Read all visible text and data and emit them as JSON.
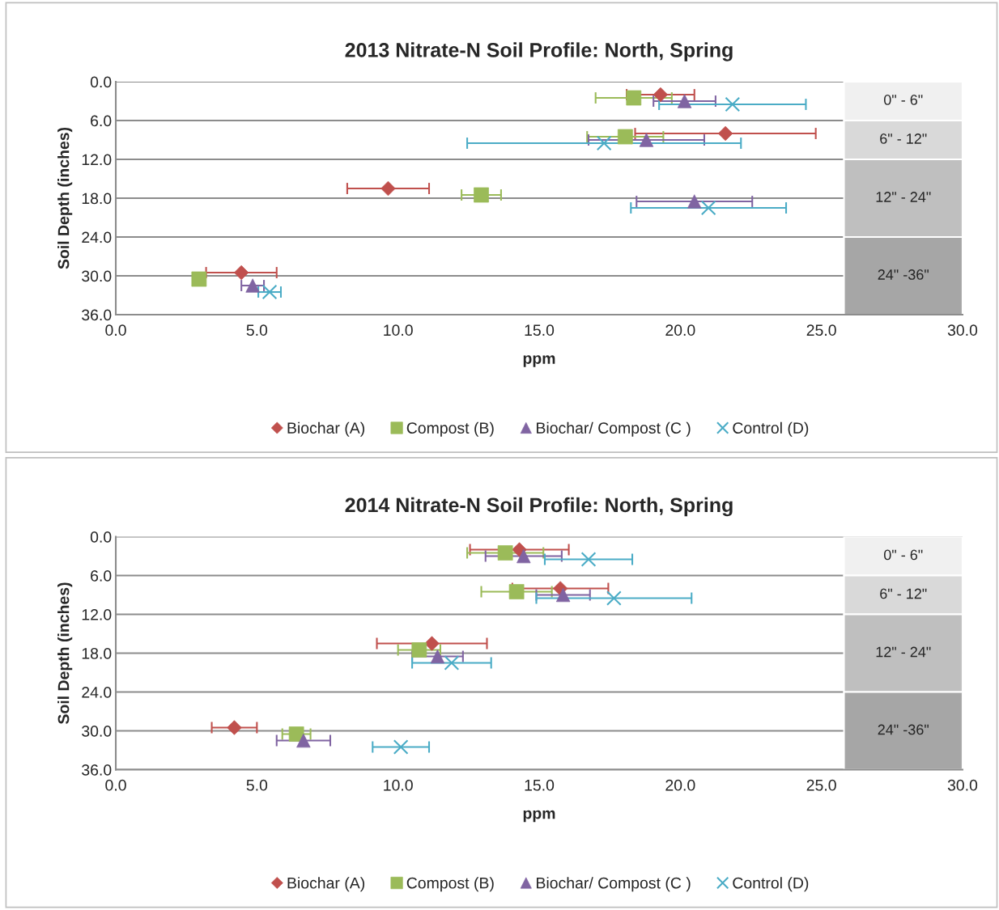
{
  "chart_data": [
    {
      "type": "scatter",
      "title": "2013 Nitrate-N Soil Profile: North, Spring",
      "xlabel": "ppm",
      "ylabel": "Soil Depth (inches)",
      "xlim": [
        0,
        30
      ],
      "xticks": [
        {
          "value": 0,
          "label": "0.0"
        },
        {
          "value": 5,
          "label": "5.0"
        },
        {
          "value": 10,
          "label": "10.0"
        },
        {
          "value": 15,
          "label": "15.0"
        },
        {
          "value": 20,
          "label": "20.0"
        },
        {
          "value": 25,
          "label": "25.0"
        },
        {
          "value": 30,
          "label": "30.0"
        }
      ],
      "ylim": [
        36,
        0
      ],
      "yticks": [
        {
          "value": 0,
          "label": "0.0"
        },
        {
          "value": 6,
          "label": "6.0"
        },
        {
          "value": 12,
          "label": "12.0"
        },
        {
          "value": 18,
          "label": "18.0"
        },
        {
          "value": 24,
          "label": "24.0"
        },
        {
          "value": 30,
          "label": "30.0"
        },
        {
          "value": 36,
          "label": "36.0"
        }
      ],
      "grid": "y",
      "legend": "bottom",
      "bands": [
        {
          "axis": "y",
          "from": 0,
          "to": 6,
          "label": "0\" - 6\"",
          "color": "#f0f0f0"
        },
        {
          "axis": "y",
          "from": 6,
          "to": 12,
          "label": "6\" - 12\"",
          "color": "#d9d9d9"
        },
        {
          "axis": "y",
          "from": 12,
          "to": 24,
          "label": "12\" - 24\"",
          "color": "#bfbfbf"
        },
        {
          "axis": "y",
          "from": 24,
          "to": 36,
          "label": "24\" -36\"",
          "color": "#a6a6a6"
        }
      ],
      "series": [
        {
          "name": "Biochar (A)",
          "color": "#c0504d",
          "marker": "diamond",
          "x": [
            19.3,
            21.6,
            9.65,
            4.45
          ],
          "values": [
            2,
            8,
            16.5,
            29.5
          ],
          "xerrors": [
            1.2,
            3.2,
            1.45,
            1.25
          ]
        },
        {
          "name": "Compost (B)",
          "color": "#9bbb59",
          "marker": "square",
          "x": [
            18.35,
            18.05,
            12.95,
            2.95
          ],
          "values": [
            2.5,
            8.5,
            17.5,
            30.5
          ],
          "xerrors": [
            1.35,
            1.35,
            0.7,
            null
          ]
        },
        {
          "name": "Biochar/ Compost (C )",
          "color": "#8064a2",
          "marker": "triangle",
          "x": [
            20.15,
            18.8,
            20.5,
            4.85
          ],
          "values": [
            3,
            9,
            18.5,
            31.5
          ],
          "xerrors": [
            1.1,
            2.05,
            2.05,
            0.4
          ]
        },
        {
          "name": "Control (D)",
          "color": "#4bacc6",
          "marker": "cross",
          "x": [
            21.85,
            17.3,
            21.0,
            5.45
          ],
          "values": [
            3.5,
            9.5,
            19.5,
            32.5
          ],
          "xerrors": [
            2.6,
            4.85,
            2.75,
            0.4
          ]
        }
      ]
    },
    {
      "type": "scatter",
      "title": "2014 Nitrate-N Soil Profile: North, Spring",
      "xlabel": "ppm",
      "ylabel": "Soil Depth (inches)",
      "xlim": [
        0,
        30
      ],
      "xticks": [
        {
          "value": 0,
          "label": "0.0"
        },
        {
          "value": 5,
          "label": "5.0"
        },
        {
          "value": 10,
          "label": "10.0"
        },
        {
          "value": 15,
          "label": "15.0"
        },
        {
          "value": 20,
          "label": "20.0"
        },
        {
          "value": 25,
          "label": "25.0"
        },
        {
          "value": 30,
          "label": "30.0"
        }
      ],
      "ylim": [
        36,
        0
      ],
      "yticks": [
        {
          "value": 0,
          "label": "0.0"
        },
        {
          "value": 6,
          "label": "6.0"
        },
        {
          "value": 12,
          "label": "12.0"
        },
        {
          "value": 18,
          "label": "18.0"
        },
        {
          "value": 24,
          "label": "24.0"
        },
        {
          "value": 30,
          "label": "30.0"
        },
        {
          "value": 36,
          "label": "36.0"
        }
      ],
      "grid": "y",
      "legend": "bottom",
      "bands": [
        {
          "axis": "y",
          "from": 0,
          "to": 6,
          "label": "0\" - 6\"",
          "color": "#f0f0f0"
        },
        {
          "axis": "y",
          "from": 6,
          "to": 12,
          "label": "6\" - 12\"",
          "color": "#d9d9d9"
        },
        {
          "axis": "y",
          "from": 12,
          "to": 24,
          "label": "12\" - 24\"",
          "color": "#bfbfbf"
        },
        {
          "axis": "y",
          "from": 24,
          "to": 36,
          "label": "24\" -36\"",
          "color": "#a6a6a6"
        }
      ],
      "series": [
        {
          "name": "Biochar (A)",
          "color": "#c0504d",
          "marker": "diamond",
          "x": [
            14.3,
            15.75,
            11.2,
            4.2
          ],
          "values": [
            2,
            8,
            16.5,
            29.5
          ],
          "xerrors": [
            1.75,
            1.7,
            1.95,
            0.8
          ]
        },
        {
          "name": "Compost (B)",
          "color": "#9bbb59",
          "marker": "square",
          "x": [
            13.8,
            14.2,
            10.75,
            6.4
          ],
          "values": [
            2.5,
            8.5,
            17.5,
            30.5
          ],
          "xerrors": [
            1.35,
            1.25,
            0.75,
            0.5
          ]
        },
        {
          "name": "Biochar/ Compost (C )",
          "color": "#8064a2",
          "marker": "triangle",
          "x": [
            14.45,
            15.85,
            11.4,
            6.65
          ],
          "values": [
            3,
            9,
            18.5,
            31.5
          ],
          "xerrors": [
            1.35,
            0.95,
            0.9,
            0.95
          ]
        },
        {
          "name": "Control (D)",
          "color": "#4bacc6",
          "marker": "cross",
          "x": [
            16.75,
            17.65,
            11.9,
            10.1
          ],
          "values": [
            3.5,
            9.5,
            19.5,
            32.5
          ],
          "xerrors": [
            1.55,
            2.75,
            1.4,
            1.0
          ]
        }
      ]
    }
  ]
}
